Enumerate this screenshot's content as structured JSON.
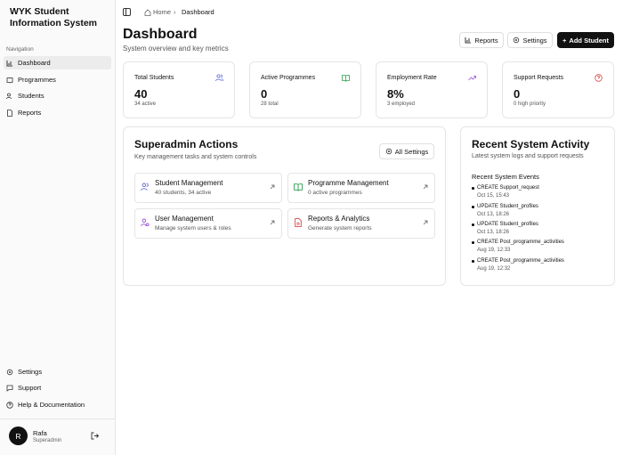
{
  "sidebar": {
    "brand": "WYK Student Information System",
    "nav_heading": "Navigation",
    "nav": [
      "Dashboard",
      "Programmes",
      "Students",
      "Reports"
    ],
    "footer_nav": [
      "Settings",
      "Support",
      "Help & Documentation"
    ],
    "user": {
      "initial": "R",
      "name": "Rafa",
      "role": "Superadmin"
    }
  },
  "breadcrumb": [
    "Home",
    "Dashboard"
  ],
  "header": {
    "title": "Dashboard",
    "subtitle": "System overview and key metrics",
    "buttons": [
      "Reports",
      "Settings",
      "Add Student"
    ]
  },
  "stats": [
    {
      "label": "Total Students",
      "value": "40",
      "note": "34 active"
    },
    {
      "label": "Active Programmes",
      "value": "0",
      "note": "28 total"
    },
    {
      "label": "Employment Rate",
      "value": "8%",
      "note": "3 employed"
    },
    {
      "label": "Support Requests",
      "value": "0",
      "note": "0 high priority"
    }
  ],
  "actions": {
    "title": "Superadmin Actions",
    "subtitle": "Key management tasks and system controls",
    "button": "All Settings",
    "items": [
      {
        "title": "Student Management",
        "desc": "40 students, 34 active"
      },
      {
        "title": "Programme Management",
        "desc": "0 active programmes"
      },
      {
        "title": "User Management",
        "desc": "Manage system users & roles"
      },
      {
        "title": "Reports & Analytics",
        "desc": "Generate system reports"
      }
    ]
  },
  "activity": {
    "title": "Recent System Activity",
    "subtitle": "Latest system logs and support requests",
    "heading": "Recent System Events",
    "events": [
      {
        "action": "CREATE Support_request",
        "time": "Oct 15, 15:43"
      },
      {
        "action": "UPDATE Student_profiles",
        "time": "Oct 13, 18:26"
      },
      {
        "action": "UPDATE Student_profiles",
        "time": "Oct 13, 18:26"
      },
      {
        "action": "CREATE Post_programme_activities",
        "time": "Aug 19, 12:33"
      },
      {
        "action": "CREATE Post_programme_activities",
        "time": "Aug 19, 12:32"
      }
    ]
  }
}
